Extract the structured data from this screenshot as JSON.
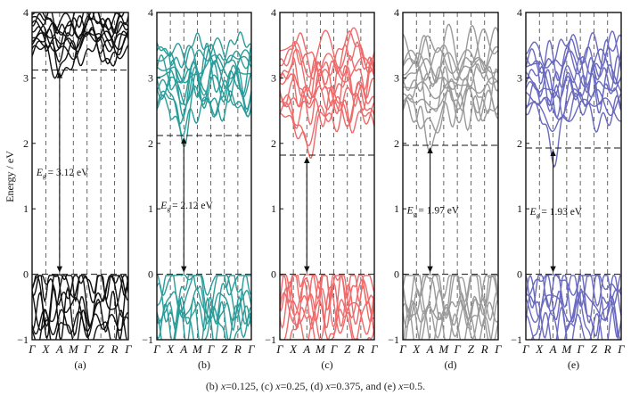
{
  "figure": {
    "ylabel": "Energy / eV",
    "caption_parts": [
      "(b) ",
      "x",
      "=0.125, (c) ",
      "x",
      "=0.25, (d) ",
      "x",
      "=0.375, and (e) ",
      "x",
      "=0.5."
    ]
  },
  "chart_data": [
    {
      "type": "line",
      "panel_label": "(a)",
      "color": "#111111",
      "ylim": [
        -1,
        4
      ],
      "yticks": [
        "-1",
        "0",
        "1",
        "2",
        "3",
        "4"
      ],
      "kpath": [
        "Γ",
        "X",
        "A",
        "M",
        "Γ",
        "Z",
        "R",
        "Γ"
      ],
      "vbm": 0,
      "cbm": 3.12,
      "gap_label": "E",
      "gap_sub": "g",
      "gap_value": "= 3.12 eV",
      "conduction_min_at": "A",
      "valence_max_at": "A"
    },
    {
      "type": "line",
      "panel_label": "(b)",
      "color": "#2a9d9a",
      "ylim": [
        -1,
        4
      ],
      "yticks": [
        "-1",
        "0",
        "1",
        "2",
        "3",
        "4"
      ],
      "kpath": [
        "Γ",
        "X",
        "A",
        "M",
        "Γ",
        "Z",
        "R",
        "Γ"
      ],
      "vbm": 0,
      "cbm": 2.12,
      "gap_label": "E",
      "gap_sub": "g",
      "gap_value": "= 2.12 eV",
      "conduction_min_at": "A",
      "valence_max_at": "A"
    },
    {
      "type": "line",
      "panel_label": "(c)",
      "color": "#ef6a6a",
      "ylim": [
        -1,
        4
      ],
      "yticks": [
        "-1",
        "0",
        "1",
        "2",
        "3",
        "4"
      ],
      "kpath": [
        "Γ",
        "X",
        "A",
        "M",
        "Γ",
        "Z",
        "R",
        "Γ"
      ],
      "vbm": 0,
      "cbm": 1.82,
      "gap_label": "",
      "gap_sub": "",
      "gap_value": "",
      "conduction_min_at": "A",
      "valence_max_at": "A"
    },
    {
      "type": "line",
      "panel_label": "(d)",
      "color": "#9a9a9a",
      "ylim": [
        -1,
        4
      ],
      "yticks": [
        "-1",
        "0",
        "1",
        "2",
        "3",
        "4"
      ],
      "kpath": [
        "Γ",
        "X",
        "A",
        "M",
        "Γ",
        "Z",
        "R",
        "Γ"
      ],
      "vbm": 0,
      "cbm": 1.97,
      "gap_label": "E",
      "gap_sub": "g",
      "gap_value": "= 1.97 eV",
      "conduction_min_at": "A",
      "valence_max_at": "A"
    },
    {
      "type": "line",
      "panel_label": "(e)",
      "color": "#6a6ac0",
      "ylim": [
        -1,
        4
      ],
      "yticks": [
        "-1",
        "0",
        "1",
        "2",
        "3",
        "4"
      ],
      "kpath": [
        "Γ",
        "X",
        "A",
        "M",
        "Γ",
        "Z",
        "R",
        "Γ"
      ],
      "vbm": 0,
      "cbm": 1.93,
      "gap_label": "E",
      "gap_sub": "g",
      "gap_value": "= 1.93 eV",
      "conduction_min_at": "A",
      "valence_max_at": "A"
    }
  ]
}
